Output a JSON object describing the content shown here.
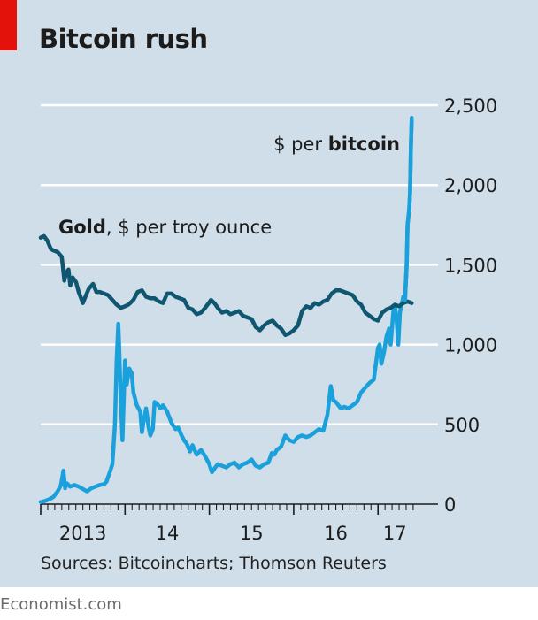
{
  "chart_data": {
    "type": "line",
    "title": "Bitcoin rush",
    "xlabel": "",
    "ylabel": "",
    "ylim": [
      0,
      2500
    ],
    "xlim": [
      2013.0,
      2017.5
    ],
    "y_ticks": [
      {
        "value": 0,
        "label": "0"
      },
      {
        "value": 500,
        "label": "500"
      },
      {
        "value": 1000,
        "label": "1,000"
      },
      {
        "value": 1500,
        "label": "1,500"
      },
      {
        "value": 2000,
        "label": "2,000"
      },
      {
        "value": 2500,
        "label": "2,500"
      }
    ],
    "x_ticks": [
      {
        "value": 2013.5,
        "label": "2013"
      },
      {
        "value": 2014.5,
        "label": "14"
      },
      {
        "value": 2015.5,
        "label": "15"
      },
      {
        "value": 2016.5,
        "label": "16"
      },
      {
        "value": 2017.2,
        "label": "17"
      }
    ],
    "grid": true,
    "series": [
      {
        "name": "Gold",
        "label_bold": "Gold",
        "label_rest": ", $ per troy ounce",
        "color": "#0f5670",
        "x": [
          2013.0,
          2013.04,
          2013.08,
          2013.12,
          2013.15,
          2013.2,
          2013.25,
          2013.28,
          2013.3,
          2013.33,
          2013.35,
          2013.38,
          2013.42,
          2013.45,
          2013.5,
          2013.53,
          2013.57,
          2013.62,
          2013.66,
          2013.7,
          2013.75,
          2013.8,
          2013.85,
          2013.9,
          2013.95,
          2014.0,
          2014.04,
          2014.1,
          2014.15,
          2014.2,
          2014.25,
          2014.3,
          2014.35,
          2014.4,
          2014.45,
          2014.5,
          2014.55,
          2014.6,
          2014.65,
          2014.7,
          2014.75,
          2014.8,
          2014.85,
          2014.9,
          2014.95,
          2015.02,
          2015.06,
          2015.1,
          2015.15,
          2015.2,
          2015.25,
          2015.3,
          2015.35,
          2015.4,
          2015.45,
          2015.5,
          2015.55,
          2015.6,
          2015.65,
          2015.7,
          2015.75,
          2015.8,
          2015.85,
          2015.9,
          2015.95,
          2016.0,
          2016.05,
          2016.1,
          2016.15,
          2016.2,
          2016.25,
          2016.3,
          2016.35,
          2016.4,
          2016.45,
          2016.5,
          2016.55,
          2016.6,
          2016.65,
          2016.7,
          2016.75,
          2016.8,
          2016.85,
          2016.9,
          2016.95,
          2017.0,
          2017.05,
          2017.1,
          2017.15,
          2017.2,
          2017.25,
          2017.3,
          2017.35,
          2017.4
        ],
        "values": [
          1670,
          1680,
          1650,
          1600,
          1590,
          1580,
          1550,
          1400,
          1450,
          1470,
          1370,
          1420,
          1390,
          1330,
          1260,
          1300,
          1350,
          1380,
          1330,
          1330,
          1320,
          1310,
          1280,
          1250,
          1230,
          1240,
          1250,
          1280,
          1330,
          1340,
          1300,
          1290,
          1290,
          1270,
          1260,
          1320,
          1320,
          1300,
          1290,
          1280,
          1230,
          1220,
          1190,
          1200,
          1230,
          1280,
          1260,
          1230,
          1200,
          1210,
          1190,
          1200,
          1210,
          1180,
          1170,
          1160,
          1110,
          1090,
          1120,
          1140,
          1150,
          1120,
          1100,
          1060,
          1070,
          1090,
          1120,
          1210,
          1240,
          1230,
          1260,
          1250,
          1270,
          1280,
          1320,
          1340,
          1340,
          1330,
          1320,
          1310,
          1270,
          1250,
          1200,
          1180,
          1160,
          1150,
          1200,
          1220,
          1230,
          1250,
          1240,
          1260,
          1270,
          1260
        ],
        "line_width_note": "thick"
      },
      {
        "name": "$ per bitcoin",
        "label_plain": "$ per ",
        "label_bold": "bitcoin",
        "color": "#1aa0db",
        "x": [
          2013.0,
          2013.05,
          2013.1,
          2013.15,
          2013.2,
          2013.24,
          2013.27,
          2013.29,
          2013.31,
          2013.35,
          2013.4,
          2013.45,
          2013.5,
          2013.55,
          2013.6,
          2013.65,
          2013.7,
          2013.75,
          2013.78,
          2013.82,
          2013.85,
          2013.88,
          2013.9,
          2013.92,
          2013.93,
          2013.95,
          2013.97,
          2014.0,
          2014.02,
          2014.05,
          2014.08,
          2014.1,
          2014.14,
          2014.18,
          2014.2,
          2014.22,
          2014.25,
          2014.28,
          2014.3,
          2014.33,
          2014.35,
          2014.38,
          2014.42,
          2014.45,
          2014.5,
          2014.55,
          2014.6,
          2014.63,
          2014.67,
          2014.7,
          2014.73,
          2014.77,
          2014.8,
          2014.85,
          2014.9,
          2014.95,
          2015.0,
          2015.03,
          2015.07,
          2015.1,
          2015.15,
          2015.2,
          2015.25,
          2015.3,
          2015.35,
          2015.4,
          2015.45,
          2015.5,
          2015.55,
          2015.6,
          2015.65,
          2015.7,
          2015.74,
          2015.77,
          2015.8,
          2015.85,
          2015.9,
          2015.95,
          2016.0,
          2016.05,
          2016.1,
          2016.15,
          2016.2,
          2016.25,
          2016.3,
          2016.35,
          2016.4,
          2016.44,
          2016.47,
          2016.5,
          2016.53,
          2016.56,
          2016.6,
          2016.65,
          2016.7,
          2016.75,
          2016.8,
          2016.85,
          2016.9,
          2016.95,
          2016.98,
          2017.0,
          2017.02,
          2017.04,
          2017.07,
          2017.1,
          2017.13,
          2017.15,
          2017.18,
          2017.2,
          2017.22,
          2017.24,
          2017.26,
          2017.28,
          2017.3,
          2017.32,
          2017.34,
          2017.35,
          2017.37,
          2017.38,
          2017.39,
          2017.4
        ],
        "values": [
          13,
          20,
          30,
          45,
          80,
          120,
          210,
          100,
          130,
          110,
          120,
          110,
          95,
          80,
          100,
          110,
          120,
          125,
          140,
          200,
          250,
          500,
          900,
          1130,
          1000,
          650,
          400,
          900,
          750,
          850,
          820,
          700,
          620,
          580,
          450,
          520,
          600,
          480,
          430,
          470,
          640,
          630,
          600,
          620,
          580,
          510,
          470,
          480,
          430,
          400,
          380,
          330,
          370,
          310,
          340,
          300,
          250,
          200,
          230,
          250,
          240,
          230,
          250,
          260,
          230,
          250,
          260,
          280,
          240,
          230,
          250,
          260,
          320,
          310,
          340,
          360,
          430,
          400,
          390,
          420,
          430,
          420,
          430,
          450,
          470,
          460,
          560,
          740,
          650,
          640,
          620,
          600,
          610,
          600,
          620,
          640,
          700,
          730,
          760,
          780,
          900,
          980,
          1000,
          880,
          950,
          1050,
          1100,
          1000,
          1200,
          1250,
          1150,
          1000,
          1200,
          1250,
          1300,
          1280,
          1500,
          1750,
          1850,
          1950,
          2250,
          2420
        ]
      }
    ]
  },
  "header": {
    "title": "Bitcoin rush"
  },
  "footer": {
    "source": "Sources: Bitcoincharts; Thomson Reuters",
    "brand": "Economist.com"
  },
  "colors": {
    "panel_bg": "#cfdee8",
    "accent_red": "#e3120b",
    "gold_line": "#0f5670",
    "bitcoin_line": "#1aa0db",
    "gridline": "#ffffff"
  }
}
